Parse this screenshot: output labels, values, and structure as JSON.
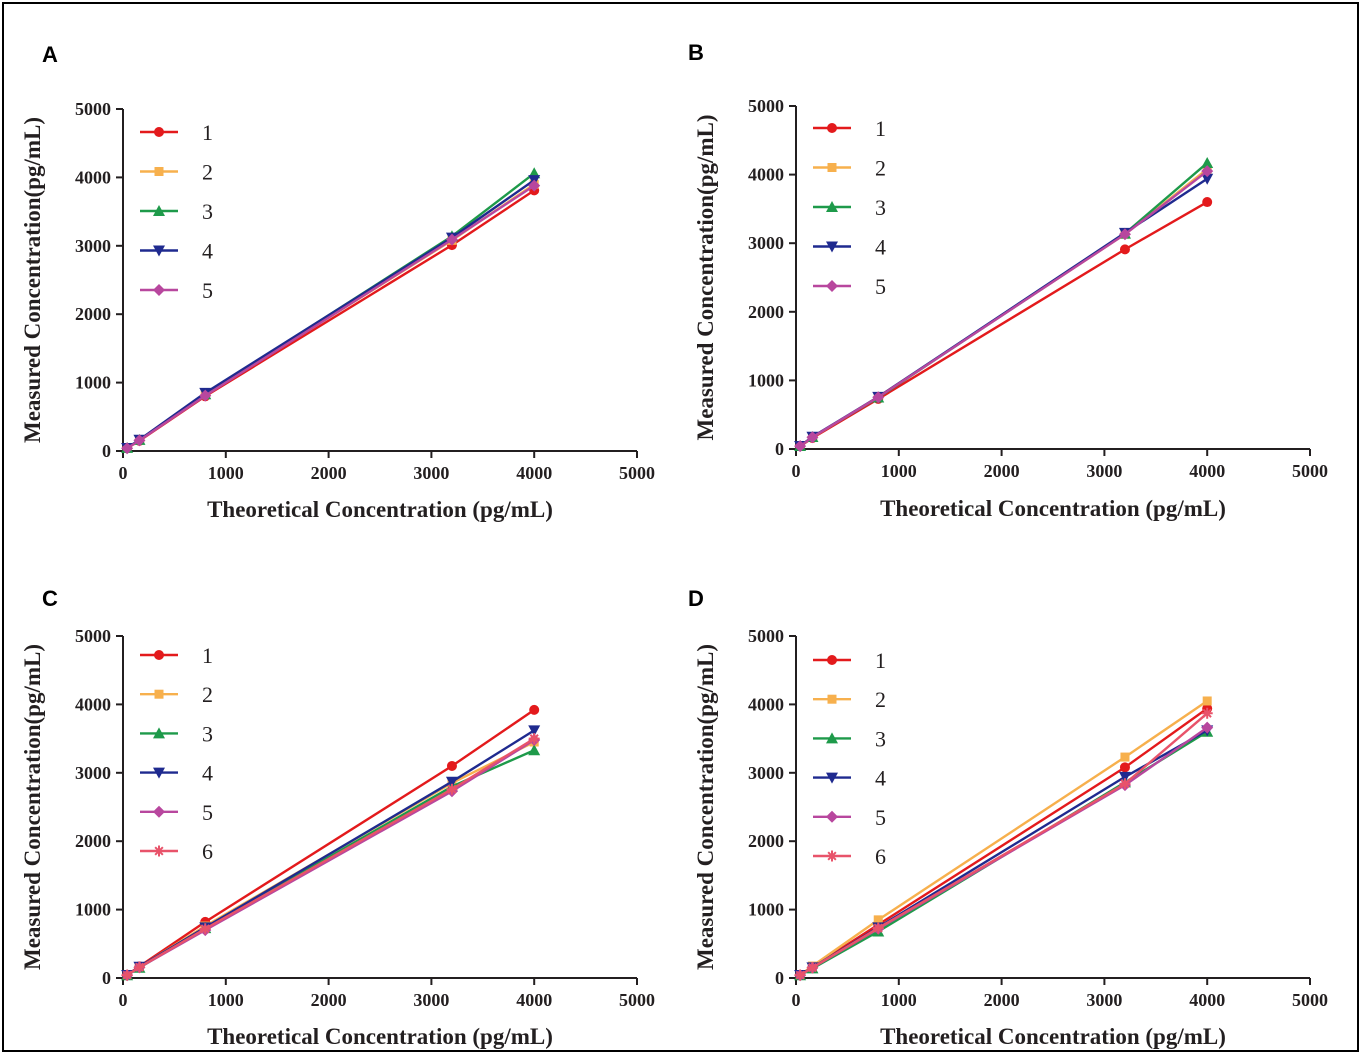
{
  "figure": {
    "panels": [
      "A",
      "B",
      "C",
      "D"
    ]
  },
  "chart_data": [
    {
      "panel": "A",
      "type": "line",
      "xlabel": "Theoretical Concentration (pg/mL)",
      "ylabel": "Measured Concentration(pg/mL)",
      "xlim": [
        0,
        5000
      ],
      "ylim": [
        0,
        5000
      ],
      "xticks": [
        0,
        1000,
        2000,
        3000,
        4000,
        5000
      ],
      "yticks": [
        0,
        1000,
        2000,
        3000,
        4000,
        5000
      ],
      "legend_position": "top-left",
      "x": [
        40,
        160,
        800,
        3200,
        4000
      ],
      "series": [
        {
          "name": "1",
          "color": "#e31a1c",
          "marker": "circle",
          "values": [
            40,
            150,
            800,
            3010,
            3810
          ]
        },
        {
          "name": "2",
          "color": "#f7b04d",
          "marker": "square",
          "values": [
            42,
            158,
            820,
            3080,
            3900
          ]
        },
        {
          "name": "3",
          "color": "#1e9a4a",
          "marker": "triangle",
          "values": [
            45,
            162,
            830,
            3140,
            4060
          ]
        },
        {
          "name": "4",
          "color": "#1f2a8f",
          "marker": "tri-down",
          "values": [
            43,
            165,
            850,
            3120,
            3960
          ]
        },
        {
          "name": "5",
          "color": "#b8479e",
          "marker": "diamond",
          "values": [
            41,
            155,
            810,
            3090,
            3880
          ]
        }
      ]
    },
    {
      "panel": "B",
      "type": "line",
      "xlabel": "Theoretical Concentration (pg/mL)",
      "ylabel": "Measured Concentration(pg/mL)",
      "xlim": [
        0,
        5000
      ],
      "ylim": [
        0,
        5000
      ],
      "xticks": [
        0,
        1000,
        2000,
        3000,
        4000,
        5000
      ],
      "yticks": [
        0,
        1000,
        2000,
        3000,
        4000,
        5000
      ],
      "legend_position": "top-left",
      "x": [
        40,
        160,
        800,
        3200,
        4000
      ],
      "series": [
        {
          "name": "1",
          "color": "#e31a1c",
          "marker": "circle",
          "values": [
            40,
            160,
            730,
            2910,
            3600
          ]
        },
        {
          "name": "2",
          "color": "#f7b04d",
          "marker": "square",
          "values": [
            42,
            170,
            760,
            3130,
            4080
          ]
        },
        {
          "name": "3",
          "color": "#1e9a4a",
          "marker": "triangle",
          "values": [
            44,
            175,
            750,
            3140,
            4170
          ]
        },
        {
          "name": "4",
          "color": "#1f2a8f",
          "marker": "tri-down",
          "values": [
            43,
            178,
            760,
            3150,
            3940
          ]
        },
        {
          "name": "5",
          "color": "#b8479e",
          "marker": "diamond",
          "values": [
            41,
            172,
            755,
            3130,
            4050
          ]
        }
      ]
    },
    {
      "panel": "C",
      "type": "line",
      "xlabel": "Theoretical Concentration (pg/mL)",
      "ylabel": "Measured Concentration(pg/mL)",
      "xlim": [
        0,
        5000
      ],
      "ylim": [
        0,
        5000
      ],
      "xticks": [
        0,
        1000,
        2000,
        3000,
        4000,
        5000
      ],
      "yticks": [
        0,
        1000,
        2000,
        3000,
        4000,
        5000
      ],
      "legend_position": "top-left",
      "x": [
        40,
        160,
        800,
        3200,
        4000
      ],
      "series": [
        {
          "name": "1",
          "color": "#e31a1c",
          "marker": "circle",
          "values": [
            45,
            170,
            820,
            3100,
            3920
          ]
        },
        {
          "name": "2",
          "color": "#f7b04d",
          "marker": "square",
          "values": [
            42,
            160,
            760,
            2850,
            3450
          ]
        },
        {
          "name": "3",
          "color": "#1e9a4a",
          "marker": "triangle",
          "values": [
            40,
            150,
            730,
            2800,
            3330
          ]
        },
        {
          "name": "4",
          "color": "#1f2a8f",
          "marker": "tri-down",
          "values": [
            43,
            165,
            740,
            2870,
            3620
          ]
        },
        {
          "name": "5",
          "color": "#b8479e",
          "marker": "diamond",
          "values": [
            41,
            155,
            700,
            2730,
            3480
          ]
        },
        {
          "name": "6",
          "color": "#e8536a",
          "marker": "star",
          "values": [
            42,
            158,
            720,
            2760,
            3500
          ]
        }
      ]
    },
    {
      "panel": "D",
      "type": "line",
      "xlabel": "Theoretical Concentration (pg/mL)",
      "ylabel": "Measured Concentration(pg/mL)",
      "xlim": [
        0,
        5000
      ],
      "ylim": [
        0,
        5000
      ],
      "xticks": [
        0,
        1000,
        2000,
        3000,
        4000,
        5000
      ],
      "yticks": [
        0,
        1000,
        2000,
        3000,
        4000,
        5000
      ],
      "legend_position": "top-left",
      "x": [
        40,
        160,
        800,
        3200,
        4000
      ],
      "series": [
        {
          "name": "1",
          "color": "#e31a1c",
          "marker": "circle",
          "values": [
            42,
            160,
            780,
            3080,
            3940
          ]
        },
        {
          "name": "2",
          "color": "#f7b04d",
          "marker": "square",
          "values": [
            45,
            175,
            850,
            3230,
            4050
          ]
        },
        {
          "name": "3",
          "color": "#1e9a4a",
          "marker": "triangle",
          "values": [
            40,
            140,
            680,
            2860,
            3600
          ]
        },
        {
          "name": "4",
          "color": "#1f2a8f",
          "marker": "tri-down",
          "values": [
            43,
            155,
            740,
            2940,
            3620
          ]
        },
        {
          "name": "5",
          "color": "#b8479e",
          "marker": "diamond",
          "values": [
            41,
            150,
            720,
            2820,
            3660
          ]
        },
        {
          "name": "6",
          "color": "#e8536a",
          "marker": "star",
          "values": [
            42,
            152,
            730,
            2840,
            3870
          ]
        }
      ]
    }
  ]
}
